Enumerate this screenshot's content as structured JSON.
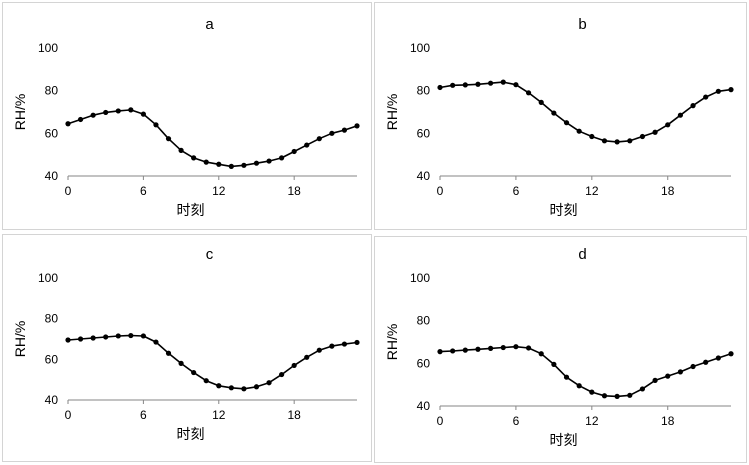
{
  "chart_data": [
    {
      "type": "line",
      "title": "a",
      "xlabel": "时刻",
      "ylabel": "RH/%",
      "x": [
        0,
        1,
        2,
        3,
        4,
        5,
        6,
        7,
        8,
        9,
        10,
        11,
        12,
        13,
        14,
        15,
        16,
        17,
        18,
        19,
        20,
        21,
        22,
        23
      ],
      "values": [
        64.5,
        66.5,
        68.5,
        69.8,
        70.5,
        71,
        69,
        64,
        57.5,
        52,
        48.5,
        46.5,
        45.5,
        44.5,
        45,
        46,
        47,
        48.5,
        51.5,
        54.5,
        57.5,
        60,
        61.5,
        63.5
      ],
      "xticks": [
        0,
        6,
        12,
        18
      ],
      "yticks": [
        40,
        60,
        80,
        100
      ],
      "xlim": [
        0,
        23
      ],
      "ylim": [
        40,
        100
      ],
      "grid": false,
      "legend": "none"
    },
    {
      "type": "line",
      "title": "b",
      "xlabel": "时刻",
      "ylabel": "RH/%",
      "x": [
        0,
        1,
        2,
        3,
        4,
        5,
        6,
        7,
        8,
        9,
        10,
        11,
        12,
        13,
        14,
        15,
        16,
        17,
        18,
        19,
        20,
        21,
        22,
        23
      ],
      "values": [
        81.5,
        82.5,
        82.7,
        83,
        83.5,
        84,
        82.8,
        79,
        74.5,
        69.5,
        65,
        61,
        58.5,
        56.5,
        56,
        56.5,
        58.5,
        60.5,
        64,
        68.5,
        73,
        77,
        79.7,
        80.5
      ],
      "xticks": [
        0,
        6,
        12,
        18
      ],
      "yticks": [
        40,
        60,
        80,
        100
      ],
      "xlim": [
        0,
        23
      ],
      "ylim": [
        40,
        100
      ],
      "grid": false,
      "legend": "none"
    },
    {
      "type": "line",
      "title": "c",
      "xlabel": "时刻",
      "ylabel": "RH/%",
      "x": [
        0,
        1,
        2,
        3,
        4,
        5,
        6,
        7,
        8,
        9,
        10,
        11,
        12,
        13,
        14,
        15,
        16,
        17,
        18,
        19,
        20,
        21,
        22,
        23
      ],
      "values": [
        69.5,
        70,
        70.5,
        71,
        71.5,
        71.7,
        71.5,
        68.5,
        63,
        58,
        53.5,
        49.5,
        47,
        46,
        45.5,
        46.5,
        48.5,
        52.5,
        57,
        61,
        64.5,
        66.5,
        67.5,
        68.3
      ],
      "xticks": [
        0,
        6,
        12,
        18
      ],
      "yticks": [
        40,
        60,
        80,
        100
      ],
      "xlim": [
        0,
        23
      ],
      "ylim": [
        40,
        100
      ],
      "grid": false,
      "legend": "none"
    },
    {
      "type": "line",
      "title": "d",
      "xlabel": "时刻",
      "ylabel": "RH/%",
      "x": [
        0,
        1,
        2,
        3,
        4,
        5,
        6,
        7,
        8,
        9,
        10,
        11,
        12,
        13,
        14,
        15,
        16,
        17,
        18,
        19,
        20,
        21,
        22,
        23
      ],
      "values": [
        65.5,
        65.8,
        66.2,
        66.6,
        67,
        67.4,
        67.8,
        67.2,
        64.5,
        59.5,
        53.5,
        49.5,
        46.5,
        44.8,
        44.5,
        45,
        48,
        52,
        54,
        56,
        58.5,
        60.5,
        62.5,
        64.5
      ],
      "xticks": [
        0,
        6,
        12,
        18
      ],
      "yticks": [
        40,
        60,
        80,
        100
      ],
      "xlim": [
        0,
        23
      ],
      "ylim": [
        40,
        100
      ],
      "grid": false,
      "legend": "none"
    }
  ]
}
